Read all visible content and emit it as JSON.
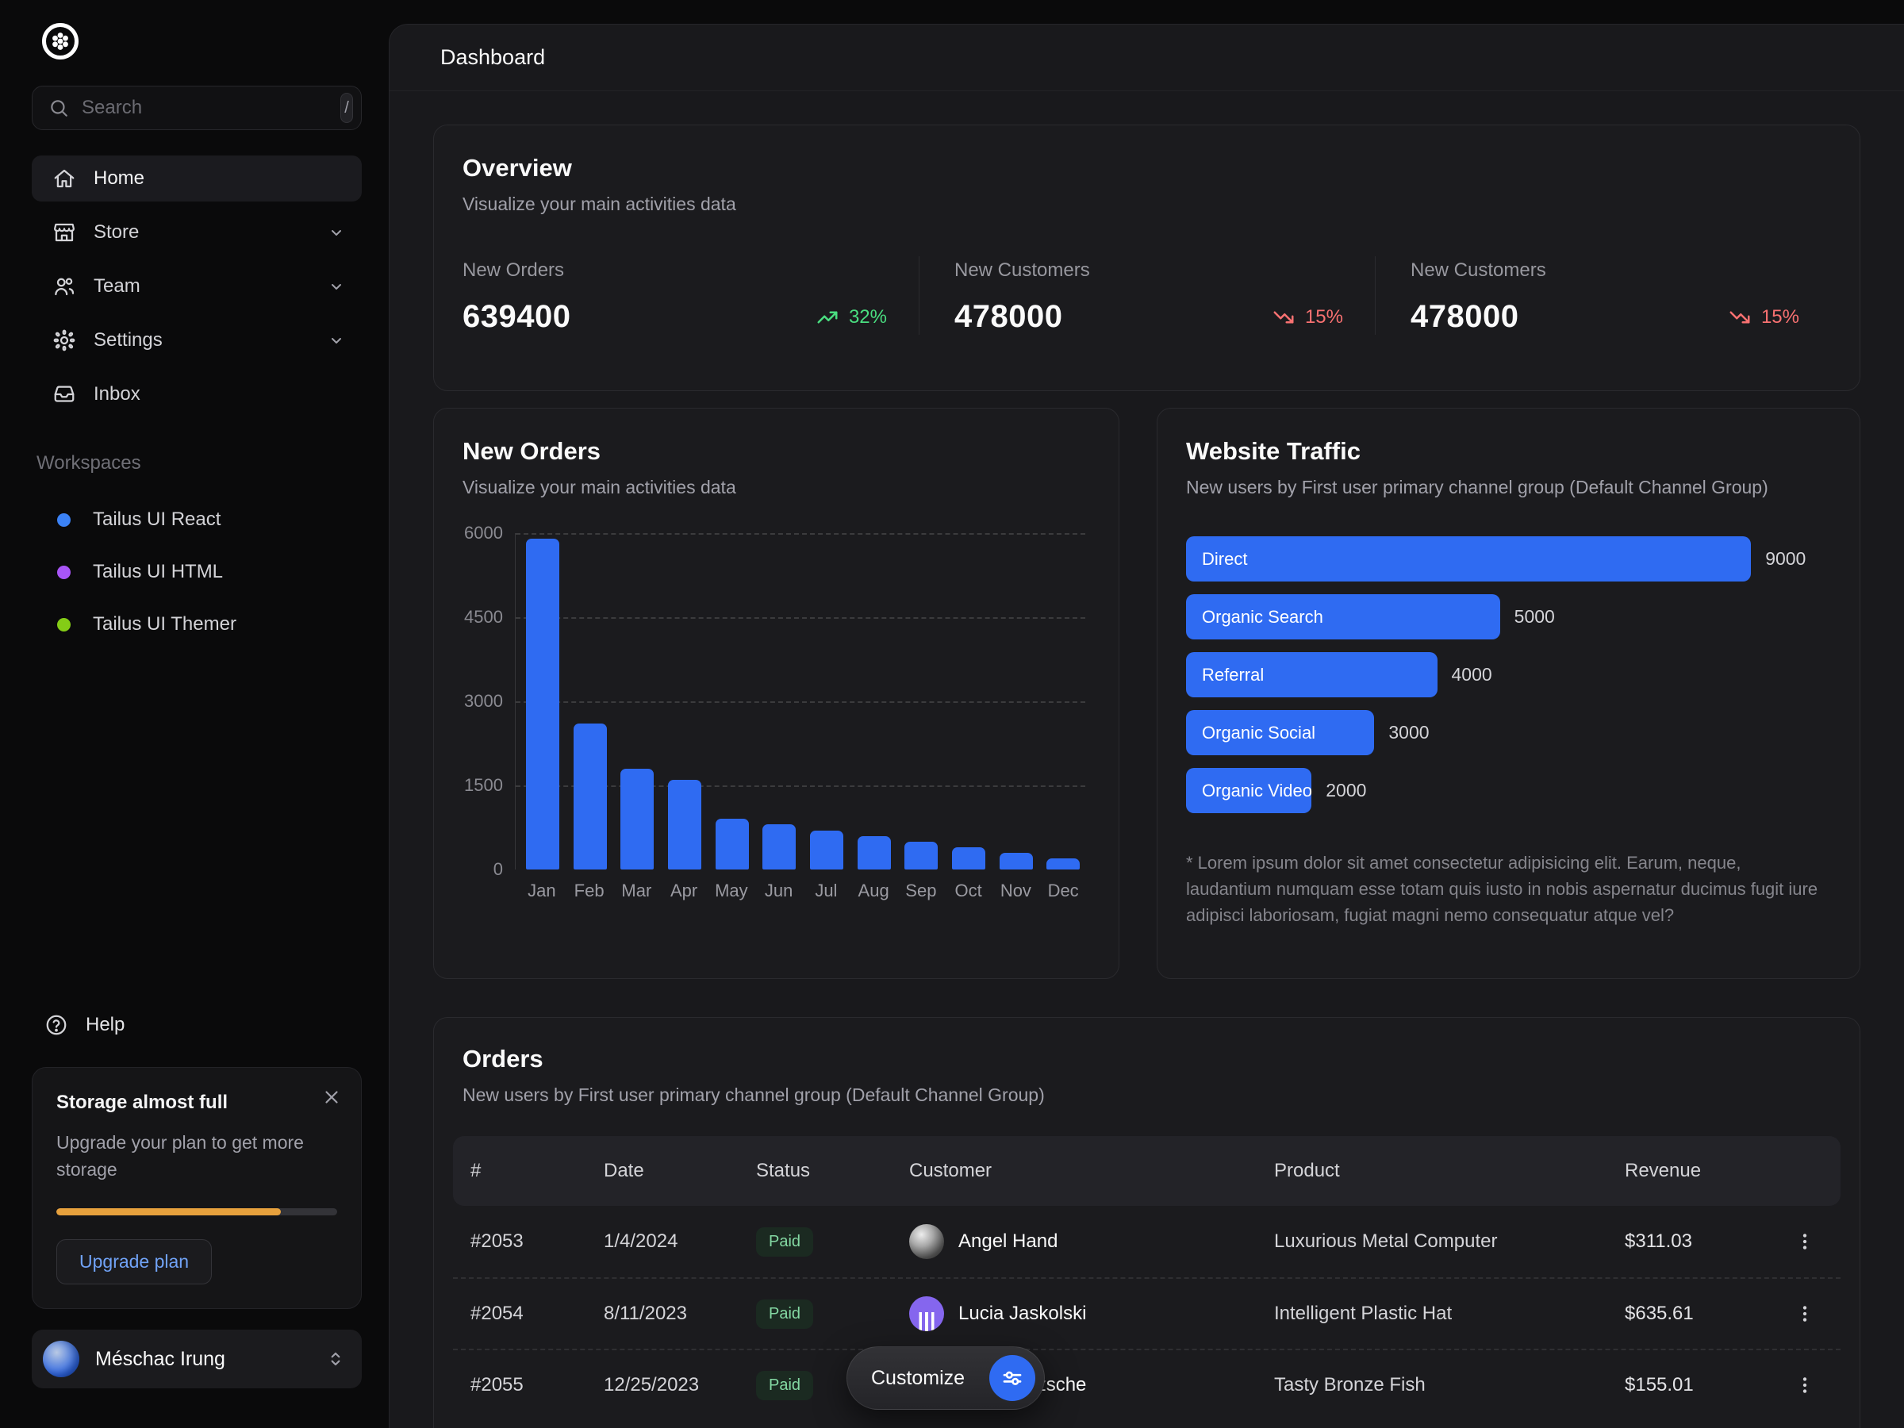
{
  "header": {
    "title": "Dashboard"
  },
  "sidebar": {
    "search": {
      "placeholder": "Search",
      "shortcut": "/"
    },
    "nav": [
      {
        "label": "Home",
        "icon": "home-icon",
        "active": true,
        "chevron": false
      },
      {
        "label": "Store",
        "icon": "store-icon",
        "active": false,
        "chevron": true
      },
      {
        "label": "Team",
        "icon": "users-icon",
        "active": false,
        "chevron": true
      },
      {
        "label": "Settings",
        "icon": "gear-icon",
        "active": false,
        "chevron": true
      },
      {
        "label": "Inbox",
        "icon": "inbox-icon",
        "active": false,
        "chevron": false
      }
    ],
    "workspaces_label": "Workspaces",
    "workspaces": [
      {
        "label": "Tailus UI React",
        "dot_color": "#3b82f6"
      },
      {
        "label": "Tailus UI HTML",
        "dot_color": "#a855f7"
      },
      {
        "label": "Tailus UI Themer",
        "dot_color": "#84cc16"
      }
    ],
    "help_label": "Help",
    "storage": {
      "title": "Storage almost full",
      "body": "Upgrade your plan to get more storage",
      "percent": 80,
      "bar_color": "#e7a13d",
      "button_label": "Upgrade plan"
    },
    "user": {
      "name": "Méschac Irung"
    }
  },
  "overview": {
    "title": "Overview",
    "subtitle": "Visualize your main activities data",
    "stats": [
      {
        "label": "New Orders",
        "value": "639400",
        "delta": "32%",
        "direction": "up",
        "color": "#4ade80"
      },
      {
        "label": "New Customers",
        "value": "478000",
        "delta": "15%",
        "direction": "down",
        "color": "#f87171"
      },
      {
        "label": "New Customers",
        "value": "478000",
        "delta": "15%",
        "direction": "down",
        "color": "#f87171"
      }
    ]
  },
  "chart_data": [
    {
      "type": "bar",
      "title": "New Orders",
      "subtitle": "Visualize your main activities data",
      "categories": [
        "Jan",
        "Feb",
        "Mar",
        "Apr",
        "May",
        "Jun",
        "Jul",
        "Aug",
        "Sep",
        "Oct",
        "Nov",
        "Dec"
      ],
      "values": [
        5900,
        2600,
        1800,
        1600,
        900,
        800,
        700,
        600,
        500,
        400,
        300,
        200
      ],
      "ylim": [
        0,
        6000
      ],
      "yticks": [
        "6000",
        "4500",
        "3000",
        "1500",
        "0"
      ],
      "grid": "horizontal-dashed",
      "bar_color": "#2f6bf2",
      "legend": "none"
    },
    {
      "type": "bar-horizontal",
      "title": "Website Traffic",
      "subtitle": "New users by First user primary channel group (Default Channel Group)",
      "categories": [
        "Direct",
        "Organic Search",
        "Referral",
        "Organic Social",
        "Organic Video"
      ],
      "values": [
        9000,
        5000,
        4000,
        3000,
        2000
      ],
      "xmax": 9000,
      "bar_color": "#2f6bf2",
      "footnote": "* Lorem ipsum dolor sit amet consectetur adipisicing elit. Earum, neque, laudantium numquam esse totam quis iusto in nobis aspernatur ducimus fugit iure adipisci laboriosam, fugiat magni nemo consequatur atque vel?"
    }
  ],
  "orders": {
    "title": "Orders",
    "subtitle": "New users by First user primary channel group (Default Channel Group)",
    "columns": [
      "#",
      "Date",
      "Status",
      "Customer",
      "Product",
      "Revenue"
    ],
    "rows": [
      {
        "id": "#2053",
        "date": "1/4/2024",
        "status": "Paid",
        "customer": "Angel Hand",
        "product": "Luxurious Metal Computer",
        "revenue": "$311.03"
      },
      {
        "id": "#2054",
        "date": "8/11/2023",
        "status": "Paid",
        "customer": "Lucia Jaskolski",
        "product": "Intelligent Plastic Hat",
        "revenue": "$635.61"
      },
      {
        "id": "#2055",
        "date": "12/25/2023",
        "status": "Paid",
        "customer": "Shem Nitzsche",
        "product": "Tasty Bronze Fish",
        "revenue": "$155.01"
      }
    ]
  },
  "customize": {
    "label": "Customize",
    "icon": "sliders-icon",
    "circle_color": "#2f6bf2"
  },
  "colors": {
    "accent_blue": "#2f6bf2",
    "positive_green": "#4ade80",
    "negative_red": "#f87171",
    "storage_amber": "#e7a13d",
    "badge_green_bg": "#1b2a21",
    "badge_green_text": "#84d9a3"
  }
}
